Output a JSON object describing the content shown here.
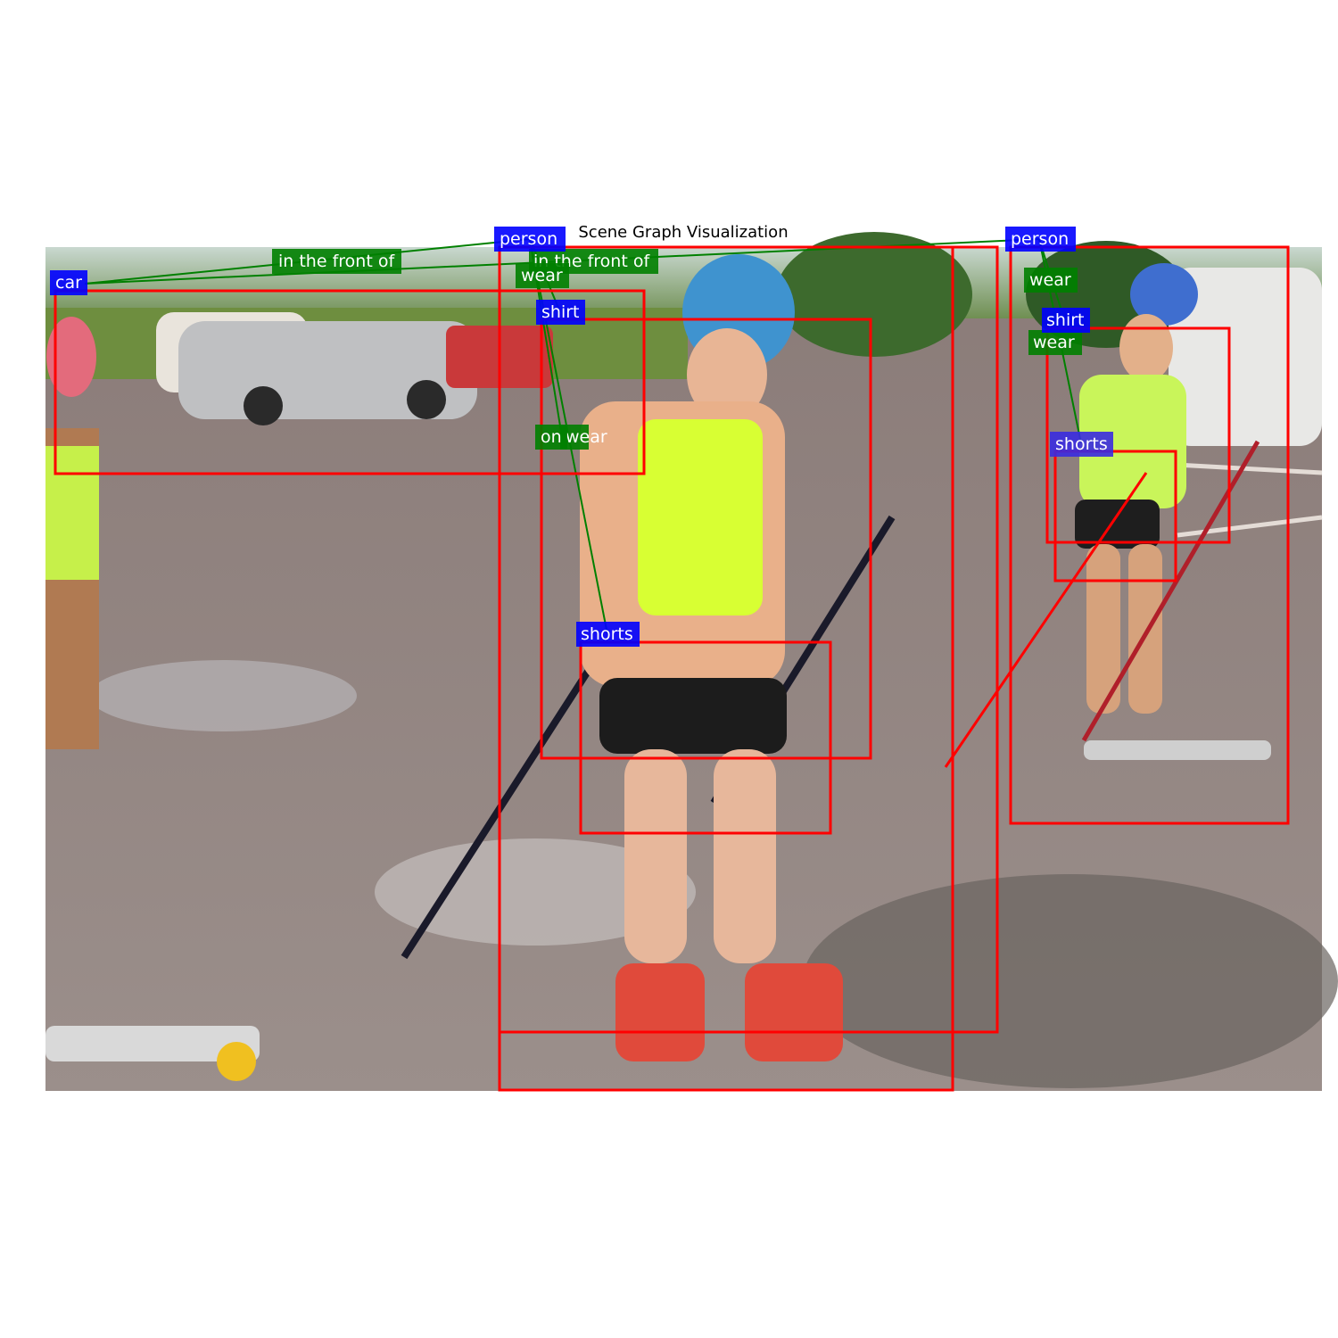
{
  "title": "Scene Graph Visualization",
  "colors": {
    "box": "#ff0000",
    "object_label_bg": "#0000ff",
    "relation_label_bg": "#008000",
    "relation_line": "#008000",
    "label_text": "#ffffff"
  },
  "objects": [
    {
      "id": "person_center",
      "label": "person"
    },
    {
      "id": "person_right",
      "label": "person"
    },
    {
      "id": "car",
      "label": "car"
    },
    {
      "id": "shirt_center",
      "label": "shirt"
    },
    {
      "id": "shirt_right",
      "label": "shirt"
    },
    {
      "id": "shorts_center",
      "label": "shorts"
    },
    {
      "id": "shorts_right",
      "label": "shorts"
    }
  ],
  "relations": [
    {
      "subject": "person_center",
      "predicate": "in the front of",
      "object": "car"
    },
    {
      "subject": "person_right",
      "predicate": "in the front of",
      "object": "car"
    },
    {
      "subject": "person_center",
      "predicate": "wear",
      "object": "shirt_center"
    },
    {
      "subject": "person_center",
      "predicate": "wear",
      "object": "shorts_center"
    },
    {
      "subject": "person_right",
      "predicate": "wear",
      "object": "shirt_right"
    },
    {
      "subject": "person_right",
      "predicate": "wear",
      "object": "shorts_right"
    },
    {
      "subject": "person_center",
      "predicate": "on",
      "object": "car"
    }
  ]
}
